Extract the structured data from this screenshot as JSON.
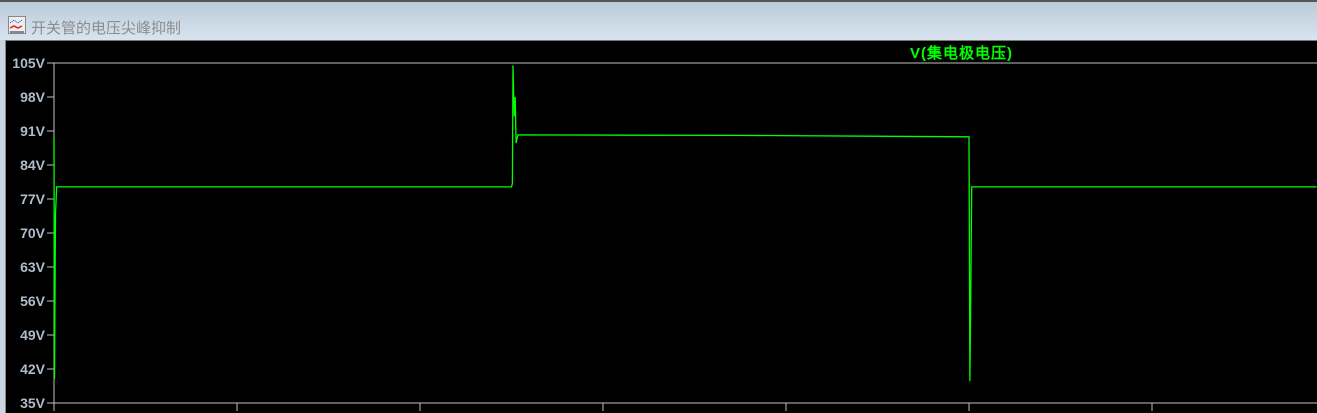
{
  "window": {
    "title": "开关管的电压尖峰抑制",
    "icon": "waveform-viewer-icon"
  },
  "chart_data": {
    "type": "line",
    "title": "",
    "xlabel": "",
    "ylabel": "",
    "ylim": [
      35,
      105
    ],
    "yticks": [
      "105V",
      "98V",
      "91V",
      "84V",
      "77V",
      "70V",
      "63V",
      "56V",
      "49V",
      "42V",
      "35V"
    ],
    "yticks_values": [
      105,
      98,
      91,
      84,
      77,
      70,
      63,
      56,
      49,
      42,
      35
    ],
    "x_unit": "grid division (no x tick labels shown)",
    "xlim": [
      0,
      6.9
    ],
    "xticks_values": [
      0,
      1,
      2,
      3,
      4,
      5,
      6
    ],
    "background": "#000000",
    "grid": false,
    "series": [
      {
        "name": "V(集电极电压)",
        "color": "#00ff00",
        "points": [
          [
            0,
            89.8
          ],
          [
            0.003,
            40
          ],
          [
            0.008,
            74
          ],
          [
            0.015,
            79.5
          ],
          [
            2.5,
            79.5
          ],
          [
            2.505,
            80.2
          ],
          [
            2.508,
            104.5
          ],
          [
            2.512,
            98
          ],
          [
            2.516,
            94
          ],
          [
            2.52,
            98
          ],
          [
            2.525,
            88.5
          ],
          [
            2.535,
            90.2
          ],
          [
            3.75,
            90.1
          ],
          [
            5.0,
            89.8
          ],
          [
            5.005,
            39.5
          ],
          [
            5.01,
            58
          ],
          [
            5.015,
            79.5
          ],
          [
            6.9,
            79.5
          ]
        ]
      }
    ],
    "legend": "top-center"
  }
}
